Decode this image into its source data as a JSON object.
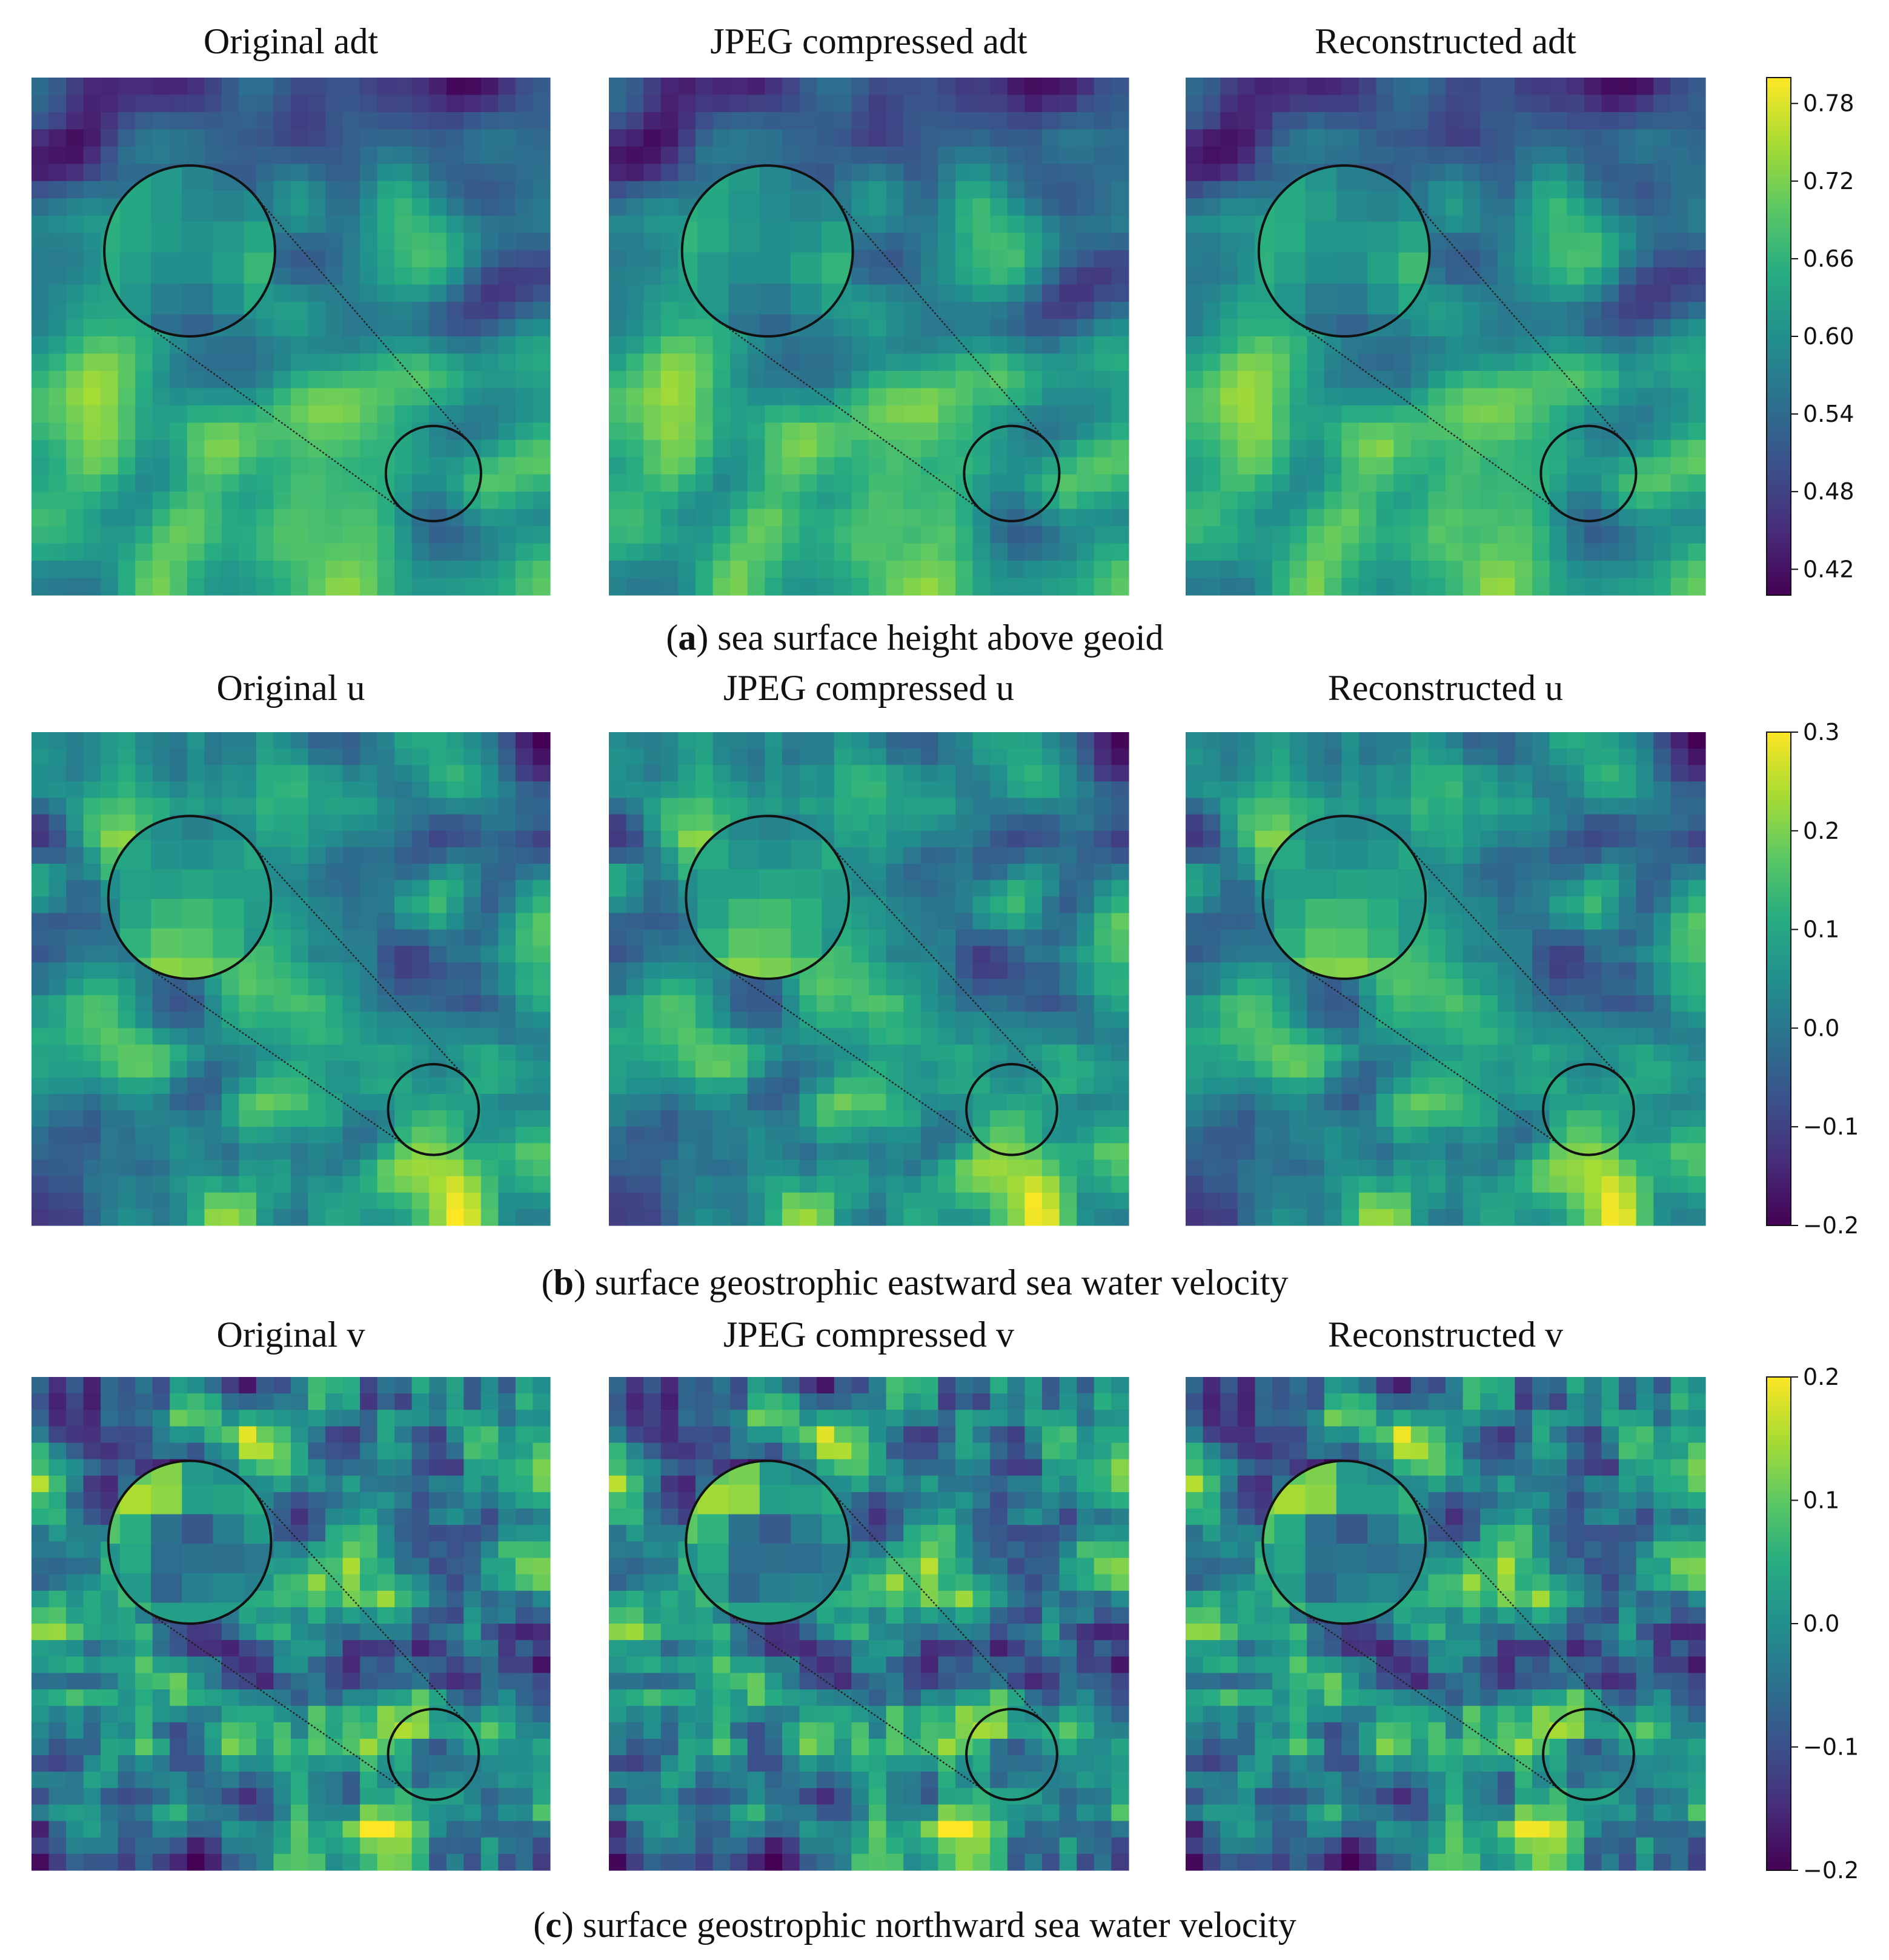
{
  "colormap": {
    "name": "viridis",
    "stops": [
      "#440154",
      "#472c7a",
      "#3b518b",
      "#2c718e",
      "#21908d",
      "#27ad81",
      "#5cc863",
      "#aadc32",
      "#fde725"
    ]
  },
  "chart_data": [
    {
      "type": "heatmap",
      "id": "a",
      "caption_letter": "a",
      "caption_text": " sea surface height above geoid",
      "variable": "adt",
      "titles": [
        "Original adt",
        "JPEG compressed adt",
        "Reconstructed adt"
      ],
      "colorbar": {
        "vmin": 0.4,
        "vmax": 0.8,
        "ticks": [
          "0.78",
          "0.72",
          "0.66",
          "0.60",
          "0.54",
          "0.48",
          "0.42"
        ],
        "tick_values": [
          0.78,
          0.72,
          0.66,
          0.6,
          0.54,
          0.48,
          0.42
        ]
      },
      "field": {
        "rows": 30,
        "cols": 30,
        "seed": 11,
        "smooth": 3,
        "gradient_down": 0.35
      },
      "zoom": "magnified inset of a bright region"
    },
    {
      "type": "heatmap",
      "id": "b",
      "caption_letter": "b",
      "caption_text": " surface geostrophic eastward sea water velocity",
      "variable": "u",
      "titles": [
        "Original u",
        "JPEG compressed u",
        "Reconstructed u"
      ],
      "colorbar": {
        "vmin": -0.2,
        "vmax": 0.3,
        "ticks": [
          "0.3",
          "0.2",
          "0.1",
          "0.0",
          "−0.1",
          "−0.2"
        ],
        "tick_values": [
          0.3,
          0.2,
          0.1,
          0.0,
          -0.1,
          -0.2
        ]
      },
      "field": {
        "rows": 30,
        "cols": 30,
        "seed": 23,
        "smooth": 2,
        "gradient_down": 0.0
      },
      "zoom": "magnified inset of a bright band above a dark band"
    },
    {
      "type": "heatmap",
      "id": "c",
      "caption_letter": "c",
      "caption_text": " surface geostrophic northward sea water velocity",
      "variable": "v",
      "titles": [
        "Original v",
        "JPEG compressed v",
        "Reconstructed v"
      ],
      "colorbar": {
        "vmin": -0.2,
        "vmax": 0.2,
        "ticks": [
          "0.2",
          "0.1",
          "0.0",
          "−0.1",
          "−0.2"
        ],
        "tick_values": [
          0.2,
          0.1,
          0.0,
          -0.1,
          -0.2
        ]
      },
      "field": {
        "rows": 30,
        "cols": 30,
        "seed": 37,
        "smooth": 1,
        "gradient_down": 0.0
      },
      "zoom": "magnified inset of a dark region beside a bright region"
    }
  ]
}
